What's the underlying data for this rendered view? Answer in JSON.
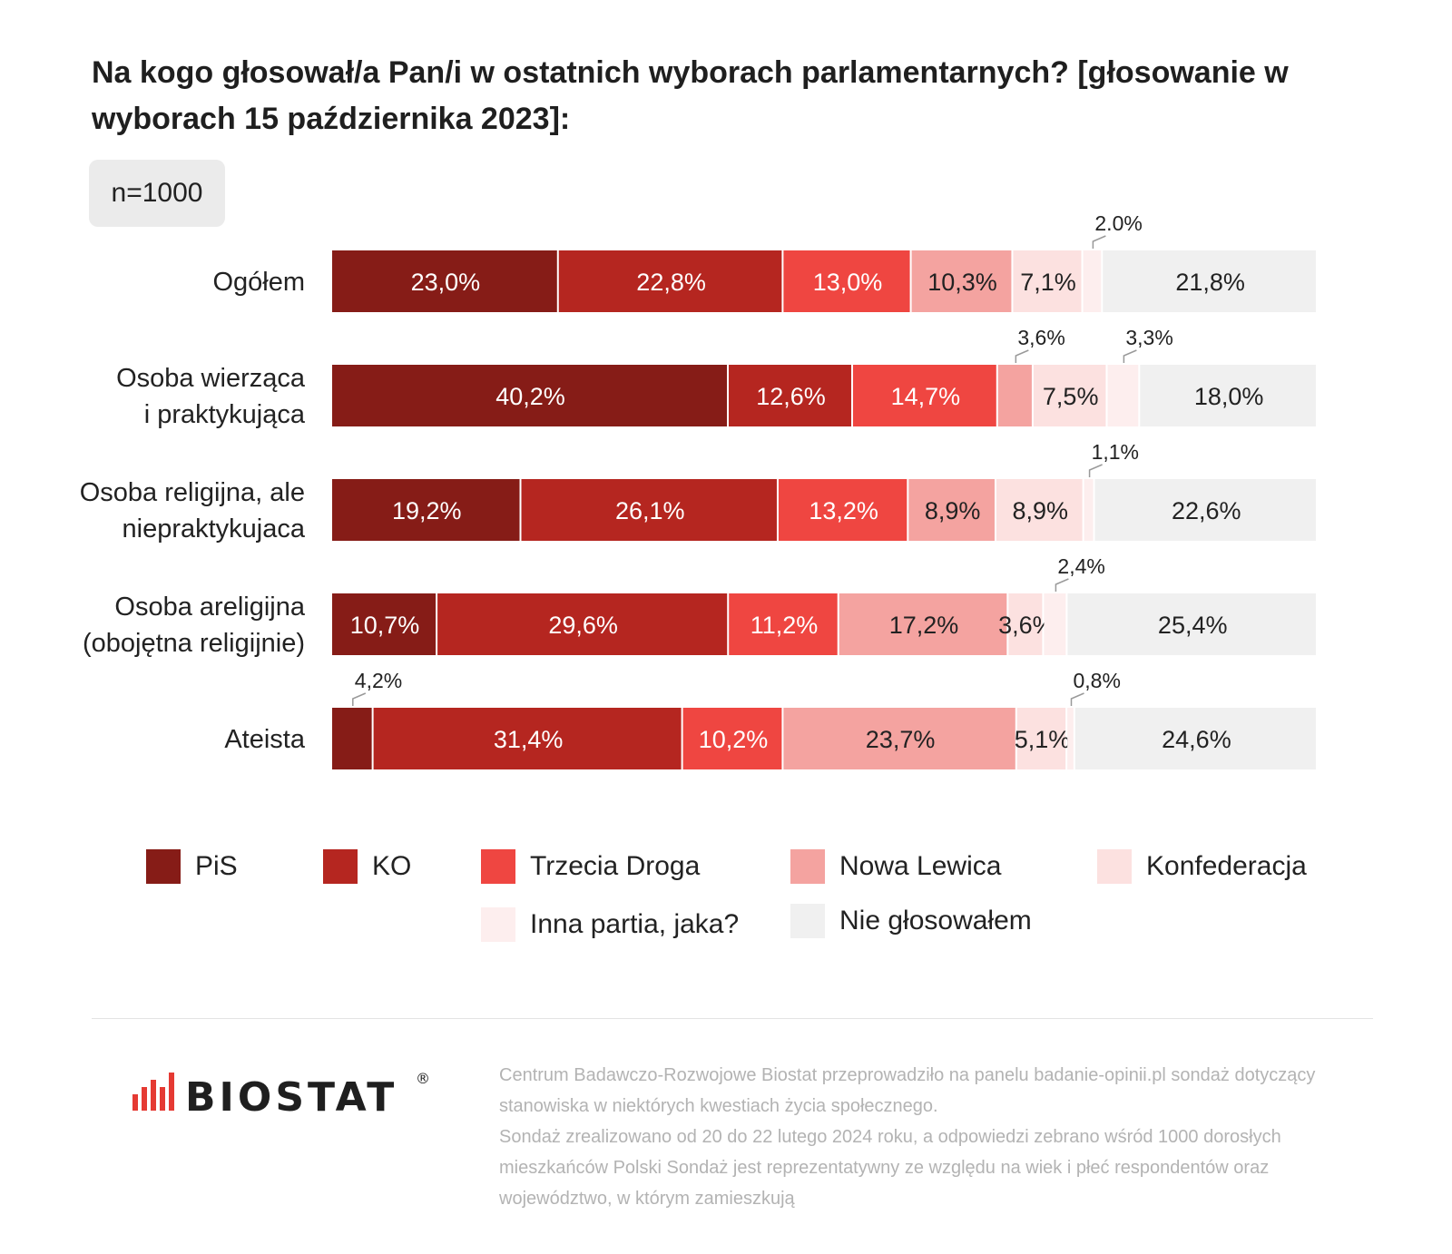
{
  "title": "Na kogo głosował/a Pan/i w ostatnich wyborach parlamentarnych? [głosowanie w wyborach 15 października 2023]:",
  "sample_label": "n=1000",
  "colors": {
    "PiS": "#861c17",
    "KO": "#b52620",
    "Trzecia Droga": "#ef4641",
    "Nowa Lewica": "#f4a3a0",
    "Konfederacja": "#fce1e0",
    "Inna partia, jaka?": "#fdeeee",
    "Nie głosowałem": "#f0f0f0"
  },
  "chart_data": {
    "type": "bar",
    "orientation": "horizontal",
    "stacked": true,
    "xlim": [
      0,
      100
    ],
    "categories": [
      "Ogółem",
      "Osoba wierząca\ni praktykująca",
      "Osoba religijna, ale\nniepraktykujaca",
      "Osoba areligijna\n(obojętna religijnie)",
      "Ateista"
    ],
    "series": [
      {
        "name": "PiS",
        "values": [
          23.0,
          40.2,
          19.2,
          10.7,
          4.2
        ],
        "labels": [
          "23,0%",
          "40,2%",
          "19,2%",
          "10,7%",
          "4,2%"
        ]
      },
      {
        "name": "KO",
        "values": [
          22.8,
          12.6,
          26.1,
          29.6,
          31.4
        ],
        "labels": [
          "22,8%",
          "12,6%",
          "26,1%",
          "29,6%",
          "31,4%"
        ]
      },
      {
        "name": "Trzecia Droga",
        "values": [
          13.0,
          14.7,
          13.2,
          11.2,
          10.2
        ],
        "labels": [
          "13,0%",
          "14,7%",
          "13,2%",
          "11,2%",
          "10,2%"
        ]
      },
      {
        "name": "Nowa Lewica",
        "values": [
          10.3,
          3.6,
          8.9,
          17.2,
          23.7
        ],
        "labels": [
          "10,3%",
          "3,6%",
          "8,9%",
          "17,2%",
          "23,7%"
        ]
      },
      {
        "name": "Konfederacja",
        "values": [
          7.1,
          7.5,
          8.9,
          3.6,
          5.1
        ],
        "labels": [
          "7,1%",
          "7,5%",
          "8,9%",
          "3,6%",
          "5,1%"
        ]
      },
      {
        "name": "Inna partia, jaka?",
        "values": [
          2.0,
          3.3,
          1.1,
          2.4,
          0.8
        ],
        "labels": [
          "2.0%",
          "3,3%",
          "1,1%",
          "2,4%",
          "0,8%"
        ]
      },
      {
        "name": "Nie głosowałem",
        "values": [
          21.8,
          18.0,
          22.6,
          25.4,
          24.6
        ],
        "labels": [
          "21,8%",
          "18,0%",
          "22,6%",
          "25,4%",
          "24,6%"
        ]
      }
    ],
    "callouts": [
      {
        "row": 0,
        "series": "Inna partia, jaka?"
      },
      {
        "row": 1,
        "series": "Nowa Lewica"
      },
      {
        "row": 1,
        "series": "Inna partia, jaka?"
      },
      {
        "row": 2,
        "series": "Inna partia, jaka?"
      },
      {
        "row": 3,
        "series": "Inna partia, jaka?"
      },
      {
        "row": 4,
        "series": "PiS"
      },
      {
        "row": 4,
        "series": "Inna partia, jaka?"
      }
    ],
    "legend_position": "bottom",
    "grid": false
  },
  "legend": {
    "items": [
      "PiS",
      "KO",
      "Trzecia Droga",
      "Nowa Lewica",
      "Konfederacja",
      "Inna partia, jaka?",
      "Nie głosowałem"
    ]
  },
  "logo": {
    "text": "BIOSTAT",
    "mark": "®"
  },
  "footnote": {
    "line1": "Centrum Badawczo-Rozwojowe Biostat przeprowadziło na panelu badanie-opinii.pl sondaż dotyczący stanowiska w niektórych kwestiach życia społecznego.",
    "line2": "Sondaż zrealizowano od 20 do 22 lutego 2024 roku, a odpowiedzi zebrano wśród 1000 dorosłych mieszkańców Polski Sondaż jest reprezentatywny ze względu na wiek i płeć respondentów oraz województwo, w którym zamieszkują"
  }
}
